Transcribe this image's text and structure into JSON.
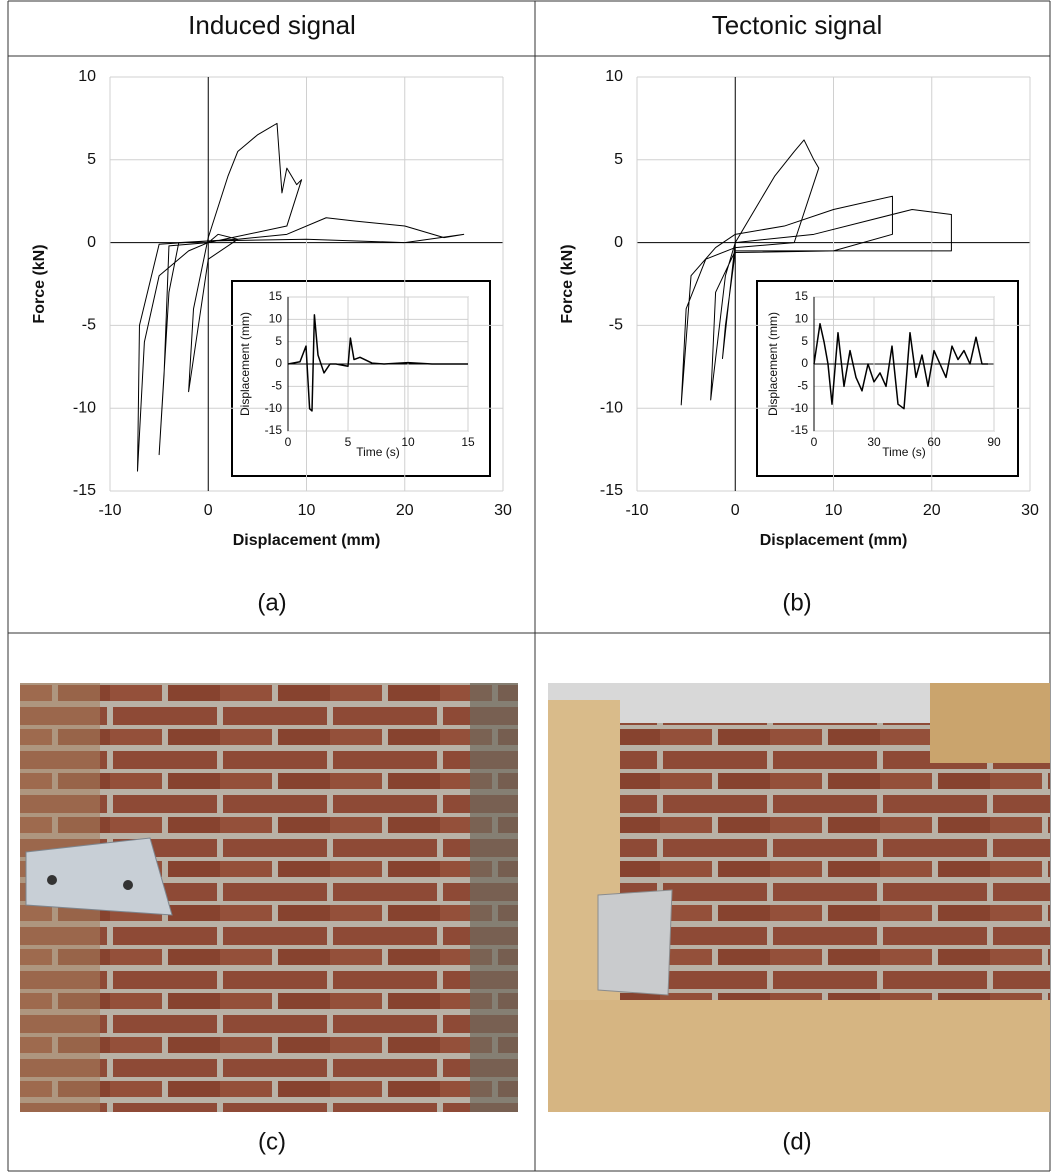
{
  "table": {
    "headers": [
      "Induced signal",
      "Tectonic signal"
    ],
    "captions": [
      "(a)",
      "(b)",
      "(c)",
      "(d)"
    ]
  },
  "chart_data": [
    {
      "type": "line",
      "xlabel": "Displacement (mm)",
      "ylabel": "Force (kN)",
      "xlim": [
        -10,
        30
      ],
      "ylim": [
        -15,
        10
      ],
      "xticks": [
        -10,
        0,
        10,
        20,
        30
      ],
      "yticks": [
        -15,
        -10,
        -5,
        0,
        5,
        10
      ],
      "grid": true,
      "series": [
        {
          "color": "#000000",
          "x": [
            0,
            1,
            3,
            0,
            -1,
            -2,
            -1.5,
            0,
            2,
            3,
            4,
            5,
            7,
            7.5,
            8,
            9,
            9.5,
            8,
            0,
            -4,
            -4.5,
            -5,
            -4,
            -3,
            3,
            8,
            12,
            15,
            20,
            24,
            26,
            20,
            10,
            0,
            -5,
            -7,
            -7.2,
            -6.5,
            -5,
            -2,
            0
          ],
          "y": [
            0,
            0.5,
            0.2,
            -1,
            -5,
            -9,
            -4,
            0.3,
            4,
            5.5,
            6,
            6.5,
            7.2,
            3,
            4.5,
            3.5,
            3.8,
            1,
            0,
            -0.2,
            -8,
            -12.8,
            -3,
            0,
            0.2,
            0.5,
            1.5,
            1.3,
            1,
            0.3,
            0.5,
            0,
            0.2,
            0.1,
            -0.1,
            -5,
            -13.8,
            -6,
            -2,
            -0.5,
            0
          ]
        }
      ]
    },
    {
      "type": "line",
      "xlabel": "Time (s)",
      "ylabel": "Displacement (mm)",
      "xlim": [
        0,
        15
      ],
      "ylim": [
        -15,
        15
      ],
      "xticks": [
        0,
        5,
        10,
        15
      ],
      "yticks": [
        -15,
        -10,
        -5,
        0,
        5,
        10,
        15
      ],
      "grid": true,
      "series": [
        {
          "color": "#000000",
          "x": [
            0,
            1,
            1.5,
            1.8,
            2,
            2.2,
            2.5,
            3,
            3.5,
            4,
            5,
            5.2,
            5.5,
            6,
            7,
            8,
            10,
            12,
            15
          ],
          "y": [
            0,
            0.5,
            4,
            -10,
            -10.5,
            11,
            2,
            -2,
            0,
            0,
            -0.5,
            5.8,
            1,
            1.5,
            0.2,
            0,
            0.3,
            0,
            0
          ]
        }
      ]
    },
    {
      "type": "line",
      "xlabel": "Displacement (mm)",
      "ylabel": "Force (kN)",
      "xlim": [
        -10,
        30
      ],
      "ylim": [
        -15,
        10
      ],
      "xticks": [
        -10,
        0,
        10,
        20,
        30
      ],
      "yticks": [
        -15,
        -10,
        -5,
        0,
        5,
        10
      ],
      "grid": true,
      "series": [
        {
          "color": "#000000",
          "x": [
            0,
            2,
            4,
            6,
            7,
            8,
            8.5,
            6,
            0,
            -3,
            -5,
            -5.5,
            -4.5,
            -2,
            0,
            5,
            10,
            16,
            16,
            10,
            0,
            -2,
            -2.5,
            -1,
            0,
            8,
            18,
            22,
            22,
            10,
            0,
            -1,
            -1.3,
            0
          ],
          "y": [
            0,
            2,
            4,
            5.5,
            6.2,
            5,
            4.5,
            0,
            -0.3,
            -1,
            -4,
            -9.8,
            -2,
            -0.3,
            0.5,
            1,
            2,
            2.8,
            0.5,
            -0.5,
            -0.5,
            -3,
            -9.5,
            -2,
            0,
            0.5,
            2,
            1.7,
            -0.5,
            -0.5,
            -0.6,
            -5,
            -7,
            0
          ]
        }
      ]
    },
    {
      "type": "line",
      "xlabel": "Time (s)",
      "ylabel": "Displacement (mm)",
      "xlim": [
        0,
        90
      ],
      "ylim": [
        -15,
        15
      ],
      "xticks": [
        0,
        30,
        60,
        90
      ],
      "yticks": [
        -15,
        -10,
        -5,
        0,
        5,
        10,
        15
      ],
      "grid": true,
      "series": [
        {
          "color": "#000000",
          "x": [
            0,
            3,
            5,
            7,
            9,
            12,
            15,
            18,
            21,
            24,
            27,
            30,
            33,
            36,
            39,
            42,
            45,
            48,
            51,
            54,
            57,
            60,
            63,
            66,
            69,
            72,
            75,
            78,
            81,
            84,
            87
          ],
          "y": [
            0,
            9,
            5,
            0,
            -9,
            7,
            -5,
            3,
            -3,
            -6,
            0,
            -4,
            -2,
            -5,
            4,
            -9,
            -10,
            7,
            -3,
            2,
            -5,
            3,
            0,
            -3,
            4,
            1,
            3,
            0,
            6,
            0,
            0
          ]
        }
      ]
    }
  ]
}
